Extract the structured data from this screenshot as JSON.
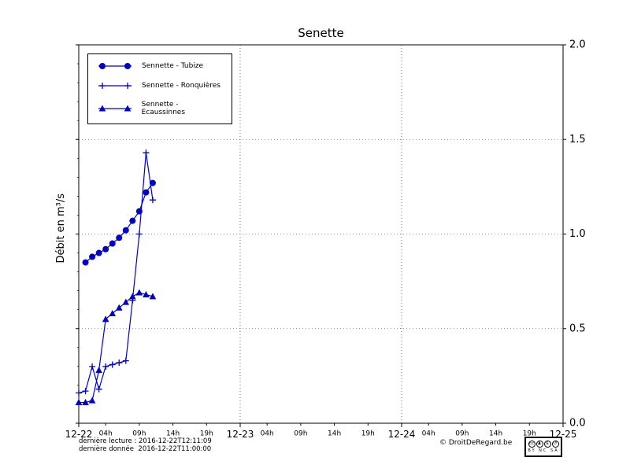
{
  "title": "Senette",
  "ylabel": "Débit en m³/s",
  "footer": {
    "line1": "dernière lecture : 2016-12-22T12:11:09",
    "line2": "dernière donnée  2016-12-22T11:00:00",
    "copyright": "© DroitDeRegard.be",
    "license": "CC BY-NC-SA",
    "license_text": "BY NC SA",
    "license_icons": [
      {
        "name": "cc-icon",
        "glyph": "cc"
      },
      {
        "name": "by-person-icon",
        "glyph": "♟"
      },
      {
        "name": "nc-no-dollar-icon",
        "glyph": "$"
      },
      {
        "name": "sa-arrow-icon",
        "glyph": "↺"
      }
    ]
  },
  "chart_data": {
    "type": "line",
    "title": "Senette",
    "ylabel": "Débit en m³/s",
    "xlabel": "",
    "x_unit_hours_from": "2016-12-22 00:00",
    "x_range_hours": [
      0,
      72
    ],
    "ylim": [
      0,
      2
    ],
    "y_ticks": [
      0.0,
      0.5,
      1.0,
      1.5,
      2.0
    ],
    "day_ticks": [
      {
        "hour": 0,
        "label": "12-22"
      },
      {
        "hour": 24,
        "label": "12-23"
      },
      {
        "hour": 48,
        "label": "12-24"
      },
      {
        "hour": 72,
        "label": "12-25"
      }
    ],
    "hour_tick_offsets": [
      4,
      9,
      14,
      19
    ],
    "hour_tick_labels": [
      "04h",
      "09h",
      "14h",
      "19h"
    ],
    "grid": "dotted",
    "legend_position": "upper-left",
    "line_color": "#0000cc",
    "series": [
      {
        "name": "Sennette - Tubize",
        "marker": "circle",
        "hours": [
          1,
          2,
          3,
          4,
          5,
          6,
          7,
          8,
          9,
          10,
          11
        ],
        "values": [
          0.85,
          0.88,
          0.9,
          0.92,
          0.95,
          0.98,
          1.02,
          1.07,
          1.12,
          1.22,
          1.27
        ]
      },
      {
        "name": "Sennette - Ronquières",
        "marker": "plus",
        "hours": [
          0,
          1,
          2,
          3,
          4,
          5,
          6,
          7,
          8,
          9,
          10,
          11
        ],
        "values": [
          0.16,
          0.17,
          0.3,
          0.18,
          0.3,
          0.31,
          0.32,
          0.33,
          0.65,
          1.0,
          1.43,
          1.18
        ]
      },
      {
        "name": "Sennette - Ecaussinnes",
        "marker": "triangle",
        "hours": [
          0,
          1,
          2,
          3,
          4,
          5,
          6,
          7,
          8,
          9,
          10,
          11
        ],
        "values": [
          0.11,
          0.11,
          0.12,
          0.28,
          0.55,
          0.58,
          0.61,
          0.64,
          0.67,
          0.69,
          0.68,
          0.67
        ]
      }
    ]
  }
}
